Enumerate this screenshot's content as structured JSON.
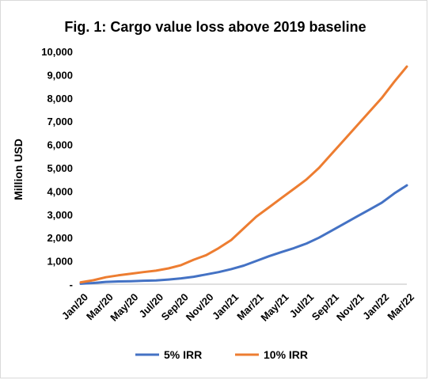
{
  "chart_data": {
    "type": "line",
    "title": "Fig. 1: Cargo value loss above 2019 baseline",
    "xlabel": "",
    "ylabel": "Million USD",
    "ylim": [
      0,
      10000
    ],
    "y_ticks": [
      0,
      1000,
      2000,
      3000,
      4000,
      5000,
      6000,
      7000,
      8000,
      9000,
      10000
    ],
    "y_tick_labels": [
      "-",
      "1,000",
      "2,000",
      "3,000",
      "4,000",
      "5,000",
      "6,000",
      "7,000",
      "8,000",
      "9,000",
      "10,000"
    ],
    "x_tick_labels": [
      "Jan/20",
      "Mar/20",
      "May/20",
      "Jul/20",
      "Sep/20",
      "Nov/20",
      "Jan/21",
      "Mar/21",
      "May/21",
      "Jul/21",
      "Sep/21",
      "Nov/21",
      "Jan/22",
      "Mar/22"
    ],
    "x": [
      "Jan/20",
      "Feb/20",
      "Mar/20",
      "Apr/20",
      "May/20",
      "Jun/20",
      "Jul/20",
      "Aug/20",
      "Sep/20",
      "Oct/20",
      "Nov/20",
      "Dec/20",
      "Jan/21",
      "Feb/21",
      "Mar/21",
      "Apr/21",
      "May/21",
      "Jun/21",
      "Jul/21",
      "Aug/21",
      "Sep/21",
      "Oct/21",
      "Nov/21",
      "Dec/21",
      "Jan/22",
      "Feb/22",
      "Mar/22"
    ],
    "series": [
      {
        "name": "5% IRR",
        "color": "#4472C4",
        "values": [
          20,
          50,
          100,
          120,
          130,
          150,
          160,
          200,
          250,
          320,
          420,
          520,
          650,
          800,
          1000,
          1200,
          1380,
          1550,
          1750,
          2000,
          2300,
          2600,
          2900,
          3200,
          3500,
          3900,
          4250
        ]
      },
      {
        "name": "10% IRR",
        "color": "#ED7D31",
        "values": [
          80,
          170,
          300,
          380,
          450,
          520,
          580,
          680,
          820,
          1050,
          1250,
          1550,
          1900,
          2400,
          2900,
          3300,
          3700,
          4100,
          4500,
          5000,
          5600,
          6200,
          6800,
          7400,
          8000,
          8700,
          9350
        ]
      }
    ],
    "grid": false,
    "legend_position": "bottom"
  }
}
